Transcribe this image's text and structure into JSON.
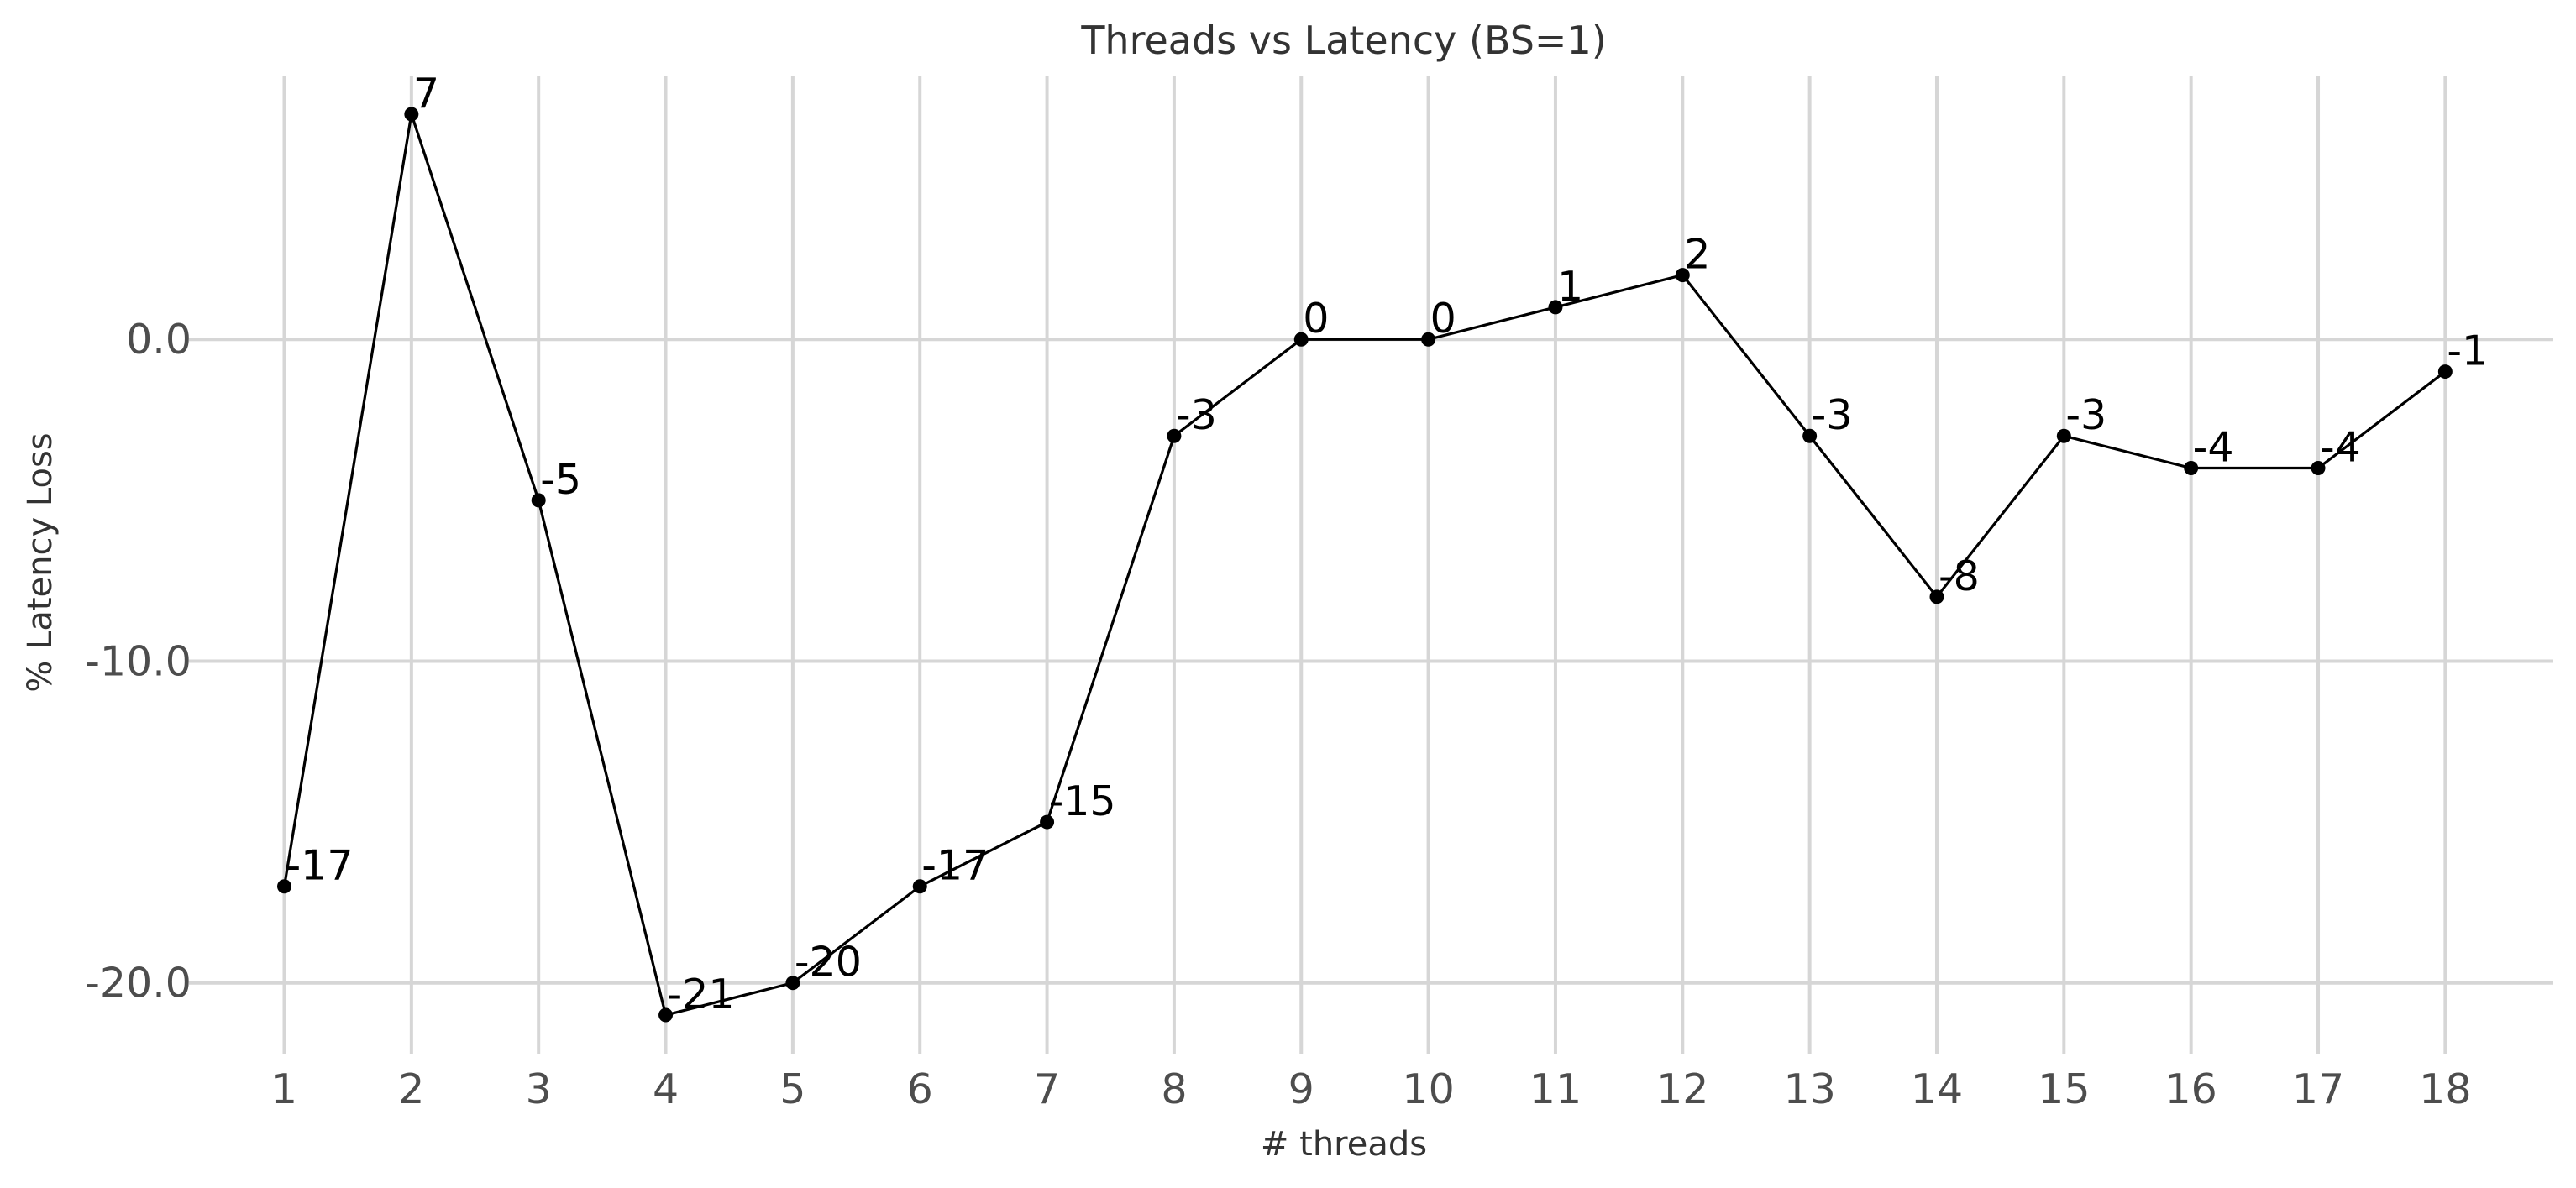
{
  "chart_data": {
    "type": "line",
    "title": "Threads vs Latency (BS=1)",
    "xlabel": "# threads",
    "ylabel": "% Latency Loss",
    "x": [
      1,
      2,
      3,
      4,
      5,
      6,
      7,
      8,
      9,
      10,
      11,
      12,
      13,
      14,
      15,
      16,
      17,
      18
    ],
    "x_tick_labels": [
      "1",
      "2",
      "3",
      "4",
      "5",
      "6",
      "7",
      "8",
      "9",
      "10",
      "11",
      "12",
      "13",
      "14",
      "15",
      "16",
      "17",
      "18"
    ],
    "series": [
      {
        "values": [
          -17,
          7,
          -5,
          -21,
          -20,
          -17,
          -15,
          -3,
          0,
          0,
          1,
          2,
          -3,
          -8,
          -3,
          -4,
          -4,
          -1
        ],
        "data_labels": [
          "-17",
          "7",
          "-5",
          "-21",
          "-20",
          "-17",
          "-15",
          "-3",
          "0",
          "0",
          "1",
          "2",
          "-3",
          "-8",
          "-3",
          "-4",
          "-4",
          "-1"
        ]
      }
    ],
    "y_ticks": [
      0,
      -10,
      -20
    ],
    "y_tick_labels": [
      "0.0",
      "-10.0",
      "-20.0"
    ],
    "xlim": [
      0.25,
      18.85
    ],
    "ylim": [
      -22.2,
      8.2
    ],
    "grid": true,
    "legend": "none",
    "colors": {
      "line": "#000000",
      "grid": "#d6d6d6",
      "text": "#333333"
    }
  }
}
